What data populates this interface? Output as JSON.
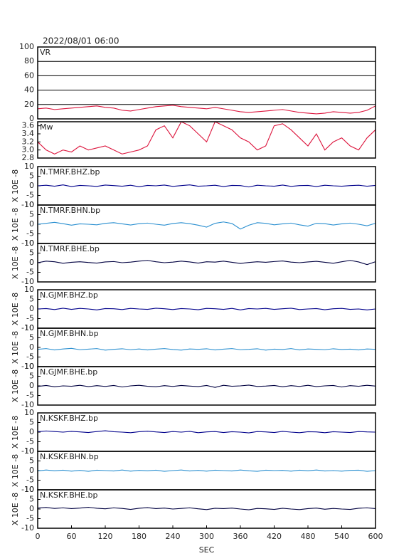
{
  "chart_data": [
    {
      "type": "line",
      "title": "2022/08/01 06:00",
      "xlim": [
        0,
        600
      ],
      "ylim": [
        0,
        100
      ],
      "yticks": [
        0,
        20,
        40,
        60,
        80,
        100
      ],
      "grid": true,
      "x": [
        0,
        15,
        30,
        45,
        60,
        75,
        90,
        105,
        120,
        135,
        150,
        165,
        180,
        195,
        210,
        225,
        240,
        255,
        270,
        285,
        300,
        315,
        330,
        345,
        360,
        375,
        390,
        405,
        420,
        435,
        450,
        465,
        480,
        495,
        510,
        525,
        540,
        555,
        570,
        585,
        600
      ],
      "series": [
        {
          "name": "VR",
          "color": "#dc143c",
          "values": [
            14,
            15,
            13,
            14,
            15,
            16,
            17,
            18,
            16,
            15,
            12,
            11,
            13,
            15,
            17,
            18,
            19,
            17,
            16,
            15,
            14,
            16,
            14,
            12,
            10,
            9,
            10,
            11,
            12,
            13,
            11,
            9,
            8,
            7,
            8,
            10,
            9,
            8,
            9,
            12,
            18
          ]
        }
      ]
    },
    {
      "type": "line",
      "xlim": [
        0,
        600
      ],
      "ylim": [
        2.8,
        3.7
      ],
      "yticks": [
        2.8,
        {
          "value": 3,
          "label": "3.0"
        },
        3.2,
        3.4,
        3.6
      ],
      "grid": false,
      "x": [
        0,
        15,
        30,
        45,
        60,
        75,
        90,
        105,
        120,
        135,
        150,
        165,
        180,
        195,
        210,
        225,
        240,
        255,
        270,
        285,
        300,
        315,
        330,
        345,
        360,
        375,
        390,
        405,
        420,
        435,
        450,
        465,
        480,
        495,
        510,
        525,
        540,
        555,
        570,
        585,
        600
      ],
      "series": [
        {
          "name": "Mw",
          "color": "#dc143c",
          "values": [
            3.2,
            3.0,
            2.9,
            3.0,
            2.95,
            3.1,
            3.0,
            3.05,
            3.1,
            3.0,
            2.9,
            2.95,
            3.0,
            3.1,
            3.5,
            3.6,
            3.3,
            3.7,
            3.6,
            3.4,
            3.2,
            3.7,
            3.6,
            3.5,
            3.3,
            3.2,
            3.0,
            3.1,
            3.6,
            3.65,
            3.5,
            3.3,
            3.1,
            3.4,
            3.0,
            3.2,
            3.3,
            3.1,
            3.0,
            3.3,
            3.5
          ]
        }
      ]
    },
    {
      "type": "line",
      "ylabel": "X 10E -8",
      "xlim": [
        0,
        600
      ],
      "ylim": [
        -10,
        10
      ],
      "yticks": [
        -10,
        -5,
        0,
        5,
        10
      ],
      "grid": false,
      "x": [
        0,
        15,
        30,
        45,
        60,
        75,
        90,
        105,
        120,
        135,
        150,
        165,
        180,
        195,
        210,
        225,
        240,
        255,
        270,
        285,
        300,
        315,
        330,
        345,
        360,
        375,
        390,
        405,
        420,
        435,
        450,
        465,
        480,
        495,
        510,
        525,
        540,
        555,
        570,
        585,
        600
      ],
      "series": [
        {
          "name": "N.TMRF.BHZ.bp",
          "color": "#00008b",
          "values": [
            0,
            0.3,
            -0.2,
            0.5,
            -0.4,
            0.2,
            0,
            -0.3,
            0.4,
            0.1,
            -0.2,
            0.3,
            -0.5,
            0.2,
            0,
            0.4,
            -0.3,
            0.1,
            0.5,
            -0.2,
            0,
            0.3,
            -0.4,
            0.2,
            0.1,
            -0.6,
            0.3,
            0,
            -0.2,
            0.4,
            -0.3,
            0.1,
            0.2,
            -0.4,
            0.3,
            0,
            -0.2,
            0.1,
            0.3,
            -0.2,
            0.2
          ]
        }
      ]
    },
    {
      "type": "line",
      "ylabel": "X 10E -8",
      "xlim": [
        0,
        600
      ],
      "ylim": [
        -10,
        10
      ],
      "yticks": [
        -10,
        -5,
        0,
        5,
        10
      ],
      "grid": false,
      "x": [
        0,
        15,
        30,
        45,
        60,
        75,
        90,
        105,
        120,
        135,
        150,
        165,
        180,
        195,
        210,
        225,
        240,
        255,
        270,
        285,
        300,
        315,
        330,
        345,
        360,
        375,
        390,
        405,
        420,
        435,
        450,
        465,
        480,
        495,
        510,
        525,
        540,
        555,
        570,
        585,
        600
      ],
      "series": [
        {
          "name": "N.TMRF.BHN.bp",
          "color": "#2a8fd0",
          "values": [
            0,
            0.5,
            1,
            0.3,
            -0.5,
            0.2,
            0,
            -0.3,
            0.5,
            0.8,
            0.2,
            -0.4,
            0.3,
            0.6,
            0,
            -0.5,
            0.4,
            0.8,
            0.3,
            -0.5,
            -1.5,
            0.5,
            1.2,
            0.4,
            -2.5,
            -0.5,
            0.8,
            0.5,
            -0.3,
            0.2,
            0.6,
            -0.3,
            -1,
            0.5,
            0.3,
            -0.4,
            0.2,
            0.6,
            0,
            -0.8,
            0.5
          ]
        }
      ]
    },
    {
      "type": "line",
      "ylabel": "X 10E -8",
      "xlim": [
        0,
        600
      ],
      "ylim": [
        -10,
        10
      ],
      "yticks": [
        -10,
        -5,
        0,
        5,
        10
      ],
      "grid": false,
      "x": [
        0,
        15,
        30,
        45,
        60,
        75,
        90,
        105,
        120,
        135,
        150,
        165,
        180,
        195,
        210,
        225,
        240,
        255,
        270,
        285,
        300,
        315,
        330,
        345,
        360,
        375,
        390,
        405,
        420,
        435,
        450,
        465,
        480,
        495,
        510,
        525,
        540,
        555,
        570,
        585,
        600
      ],
      "series": [
        {
          "name": "N.TMRF.BHE.bp",
          "color": "#000040",
          "values": [
            0,
            0.8,
            0.5,
            -0.3,
            0.2,
            0.5,
            0.1,
            -0.2,
            0.4,
            0.6,
            0,
            0.3,
            0.8,
            1.2,
            0.5,
            0,
            0.3,
            0.8,
            0.4,
            -0.2,
            0.5,
            0.3,
            0.8,
            0.2,
            -0.4,
            0.1,
            0.5,
            0.2,
            0.6,
            0.9,
            0.3,
            0,
            0.4,
            0.7,
            0.2,
            -0.3,
            0.5,
            1.2,
            0.4,
            -1,
            0.5
          ]
        }
      ]
    },
    {
      "type": "line",
      "ylabel": "X 10E -8",
      "xlim": [
        0,
        600
      ],
      "ylim": [
        -10,
        10
      ],
      "yticks": [
        -10,
        -5,
        0,
        5,
        10
      ],
      "grid": false,
      "x": [
        0,
        15,
        30,
        45,
        60,
        75,
        90,
        105,
        120,
        135,
        150,
        165,
        180,
        195,
        210,
        225,
        240,
        255,
        270,
        285,
        300,
        315,
        330,
        345,
        360,
        375,
        390,
        405,
        420,
        435,
        450,
        465,
        480,
        495,
        510,
        525,
        540,
        555,
        570,
        585,
        600
      ],
      "series": [
        {
          "name": "N.GJMF.BHZ.bp",
          "color": "#00008b",
          "values": [
            0,
            0.2,
            -0.3,
            0.4,
            -0.2,
            0.3,
            0,
            -0.5,
            0.2,
            0.1,
            -0.3,
            0.3,
            0,
            -0.2,
            0.4,
            0.1,
            -0.3,
            0.2,
            0,
            -0.4,
            0.3,
            0.1,
            -0.2,
            0.3,
            -0.5,
            0.2,
            0,
            0.3,
            -0.2,
            0.1,
            0.4,
            -0.3,
            0,
            0.2,
            -0.4,
            0.1,
            0.3,
            -0.2,
            0,
            -0.5,
            0
          ]
        }
      ]
    },
    {
      "type": "line",
      "ylabel": "X 10E -8",
      "xlim": [
        0,
        600
      ],
      "ylim": [
        -10,
        10
      ],
      "yticks": [
        -10,
        -5,
        0,
        5,
        10
      ],
      "grid": false,
      "x": [
        0,
        15,
        30,
        45,
        60,
        75,
        90,
        105,
        120,
        135,
        150,
        165,
        180,
        195,
        210,
        225,
        240,
        255,
        270,
        285,
        300,
        315,
        330,
        345,
        360,
        375,
        390,
        405,
        420,
        435,
        450,
        465,
        480,
        495,
        510,
        525,
        540,
        555,
        570,
        585,
        600
      ],
      "series": [
        {
          "name": "N.GJMF.BHN.bp",
          "color": "#2a8fd0",
          "values": [
            -1,
            -0.6,
            -1.3,
            -0.8,
            -0.5,
            -1.2,
            -0.9,
            -0.6,
            -1.4,
            -1,
            -0.7,
            -1.2,
            -0.8,
            -1.3,
            -0.9,
            -0.6,
            -1.1,
            -1.4,
            -0.8,
            -1,
            -0.7,
            -1.3,
            -0.9,
            -0.6,
            -1.2,
            -1,
            -0.7,
            -1.4,
            -0.9,
            -1.1,
            -0.6,
            -1.3,
            -0.8,
            -1,
            -1.2,
            -0.7,
            -1.1,
            -0.9,
            -1.3,
            -0.8,
            -1
          ]
        }
      ]
    },
    {
      "type": "line",
      "ylabel": "X 10E -8",
      "xlim": [
        0,
        600
      ],
      "ylim": [
        -10,
        10
      ],
      "yticks": [
        -10,
        -5,
        0,
        5,
        10
      ],
      "grid": false,
      "x": [
        0,
        15,
        30,
        45,
        60,
        75,
        90,
        105,
        120,
        135,
        150,
        165,
        180,
        195,
        210,
        225,
        240,
        255,
        270,
        285,
        300,
        315,
        330,
        345,
        360,
        375,
        390,
        405,
        420,
        435,
        450,
        465,
        480,
        495,
        510,
        525,
        540,
        555,
        570,
        585,
        600
      ],
      "series": [
        {
          "name": "N.GJMF.BHE.bp",
          "color": "#000040",
          "values": [
            -0.3,
            0.2,
            -0.5,
            0,
            -0.2,
            0.3,
            -0.4,
            0.1,
            -0.3,
            0.2,
            -0.6,
            0,
            0.3,
            -0.2,
            -0.5,
            0.1,
            -0.3,
            0.2,
            -0.1,
            -0.4,
            0.2,
            -0.8,
            0.3,
            -0.2,
            0,
            0.4,
            -0.3,
            -0.1,
            0.2,
            -0.5,
            0.1,
            -0.3,
            0.3,
            -0.4,
            0,
            0.2,
            -0.6,
            0.1,
            -0.2,
            0.3,
            -0.1
          ]
        }
      ]
    },
    {
      "type": "line",
      "ylabel": "X 10E -8",
      "xlim": [
        0,
        600
      ],
      "ylim": [
        -10,
        10
      ],
      "yticks": [
        -10,
        -5,
        0,
        5,
        10
      ],
      "grid": false,
      "x": [
        0,
        15,
        30,
        45,
        60,
        75,
        90,
        105,
        120,
        135,
        150,
        165,
        180,
        195,
        210,
        225,
        240,
        255,
        270,
        285,
        300,
        315,
        330,
        345,
        360,
        375,
        390,
        405,
        420,
        435,
        450,
        465,
        480,
        495,
        510,
        525,
        540,
        555,
        570,
        585,
        600
      ],
      "series": [
        {
          "name": "N.KSKF.BHZ.bp",
          "color": "#00008b",
          "values": [
            0.2,
            0.6,
            0.3,
            0,
            0.4,
            0.1,
            -0.2,
            0.3,
            0.7,
            0.2,
            0,
            -0.3,
            0.2,
            0.5,
            0.1,
            -0.2,
            0.3,
            0,
            0.4,
            -0.3,
            0.1,
            0.3,
            -0.2,
            0.2,
            0,
            -0.4,
            0.3,
            0.1,
            -0.2,
            0.4,
            0,
            -0.3,
            0.2,
            0.1,
            -0.3,
            0.2,
            0,
            -0.2,
            0.3,
            0.1,
            0
          ]
        }
      ]
    },
    {
      "type": "line",
      "ylabel": "X 10E -8",
      "xlim": [
        0,
        600
      ],
      "ylim": [
        -10,
        10
      ],
      "yticks": [
        -10,
        -5,
        0,
        5,
        10
      ],
      "grid": false,
      "x": [
        0,
        15,
        30,
        45,
        60,
        75,
        90,
        105,
        120,
        135,
        150,
        165,
        180,
        195,
        210,
        225,
        240,
        255,
        270,
        285,
        300,
        315,
        330,
        345,
        360,
        375,
        390,
        405,
        420,
        435,
        450,
        465,
        480,
        495,
        510,
        525,
        540,
        555,
        570,
        585,
        600
      ],
      "series": [
        {
          "name": "N.KSKF.BHN.bp",
          "color": "#2a8fd0",
          "values": [
            -0.2,
            0.3,
            -0.1,
            0.2,
            -0.3,
            0.1,
            -0.4,
            0.2,
            0,
            -0.2,
            0.3,
            -0.3,
            0.1,
            -0.1,
            0.2,
            -0.4,
            0,
            0.3,
            -0.2,
            0.1,
            -0.3,
            0.2,
            0,
            -0.2,
            0.3,
            -0.1,
            -0.4,
            0.2,
            0,
            0.1,
            -0.3,
            0.2,
            -0.1,
            0.3,
            -0.2,
            0,
            -0.3,
            0.1,
            0.2,
            -0.4,
            0
          ]
        }
      ]
    },
    {
      "type": "line",
      "ylabel": "X 10E -8",
      "xlabel": "SEC",
      "xlim": [
        0,
        600
      ],
      "xticks": [
        0,
        60,
        120,
        180,
        240,
        300,
        360,
        420,
        480,
        540,
        600
      ],
      "ylim": [
        -10,
        10
      ],
      "yticks": [
        -10,
        -5,
        0,
        5,
        10
      ],
      "grid": false,
      "x": [
        0,
        15,
        30,
        45,
        60,
        75,
        90,
        105,
        120,
        135,
        150,
        165,
        180,
        195,
        210,
        225,
        240,
        255,
        270,
        285,
        300,
        315,
        330,
        345,
        360,
        375,
        390,
        405,
        420,
        435,
        450,
        465,
        480,
        495,
        510,
        525,
        540,
        555,
        570,
        585,
        600
      ],
      "series": [
        {
          "name": "N.KSKF.BHE.bp",
          "color": "#000040",
          "values": [
            0.5,
            0.8,
            0.3,
            0.6,
            0.2,
            0.5,
            0.9,
            0.4,
            0.1,
            0.6,
            0.3,
            -0.2,
            0.4,
            0.7,
            0.2,
            0.5,
            0,
            0.3,
            0.6,
            0.1,
            -0.3,
            0.4,
            0.2,
            0.5,
            0,
            -0.4,
            0.3,
            0.1,
            -0.2,
            0.4,
            0,
            -0.3,
            0.2,
            0.5,
            -0.1,
            0.3,
            0,
            -0.2,
            0.4,
            0.6,
            0.2
          ]
        }
      ]
    }
  ]
}
